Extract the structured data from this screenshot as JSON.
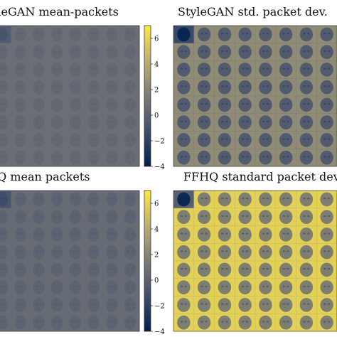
{
  "chart_data": [
    {
      "type": "heatmap",
      "title": "StyleGAN mean-packets",
      "grid": [
        8,
        8
      ],
      "colormap": "cividis",
      "colorbar": {
        "range": [
          -4,
          7
        ],
        "ticks": [
          6,
          4,
          2,
          0,
          -2,
          -4
        ]
      },
      "overall_level": 0.42,
      "contrast": 0.1
    },
    {
      "type": "heatmap",
      "title": "StyleGAN std. packet dev.",
      "grid": [
        8,
        8
      ],
      "colormap": "cividis",
      "overall_level": 0.4,
      "contrast": 0.35
    },
    {
      "type": "heatmap",
      "title": "FFHQ mean packets",
      "grid": [
        8,
        8
      ],
      "colormap": "cividis",
      "colorbar": {
        "range": [
          -4,
          7
        ],
        "ticks": [
          6,
          4,
          2,
          0,
          -2,
          -4
        ]
      },
      "overall_level": 0.4,
      "contrast": 0.12
    },
    {
      "type": "heatmap",
      "title": "FFHQ standard packet dev.",
      "grid": [
        8,
        8
      ],
      "colormap": "cividis",
      "overall_level": 0.62,
      "contrast": 0.55
    }
  ]
}
